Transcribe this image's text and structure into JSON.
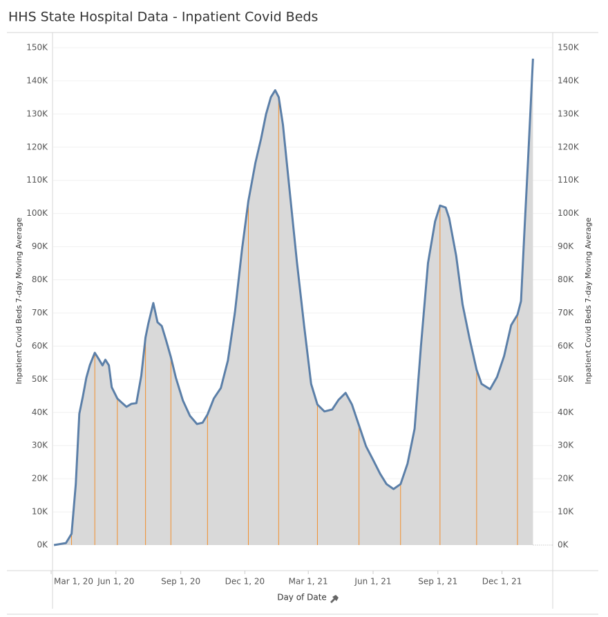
{
  "chart_data": {
    "type": "area",
    "title": "HHS State Hospital Data - Inpatient Covid Beds",
    "x_label": "Day of Date",
    "y_label": "Inpatient Covid Beds 7-day Moving Average",
    "y2_label": "Inpatient Covid Beds 7-day Moving Average",
    "xlim": [
      "2020-03-01",
      "2022-02-11"
    ],
    "xticks": [
      {
        "value": "2020-03-01",
        "label": "Mar 1, 20"
      },
      {
        "value": "2020-06-01",
        "label": "Jun 1, 20"
      },
      {
        "value": "2020-09-01",
        "label": "Sep 1, 20"
      },
      {
        "value": "2020-12-01",
        "label": "Dec 1, 20"
      },
      {
        "value": "2021-03-01",
        "label": "Mar 1, 21"
      },
      {
        "value": "2021-06-01",
        "label": "Jun 1, 21"
      },
      {
        "value": "2021-09-01",
        "label": "Sep 1, 21"
      },
      {
        "value": "2021-12-01",
        "label": "Dec 1, 21"
      }
    ],
    "ylim": [
      0,
      150000
    ],
    "yticks": [
      {
        "value": 0,
        "label": "0K"
      },
      {
        "value": 10000,
        "label": "10K"
      },
      {
        "value": 20000,
        "label": "20K"
      },
      {
        "value": 30000,
        "label": "30K"
      },
      {
        "value": 40000,
        "label": "40K"
      },
      {
        "value": 50000,
        "label": "50K"
      },
      {
        "value": 60000,
        "label": "60K"
      },
      {
        "value": 70000,
        "label": "70K"
      },
      {
        "value": 80000,
        "label": "80K"
      },
      {
        "value": 90000,
        "label": "90K"
      },
      {
        "value": 100000,
        "label": "100K"
      },
      {
        "value": 110000,
        "label": "110K"
      },
      {
        "value": 120000,
        "label": "120K"
      },
      {
        "value": 130000,
        "label": "130K"
      },
      {
        "value": 140000,
        "label": "140K"
      },
      {
        "value": 150000,
        "label": "150K"
      }
    ],
    "grid": true,
    "line_color": "#5b7fa8",
    "fill_color": "#d9d9d9",
    "drop_line_color": "#f28e2b",
    "x": [
      "2020-03-05",
      "2020-03-22",
      "2020-03-30",
      "2020-04-05",
      "2020-04-10",
      "2020-04-15",
      "2020-04-20",
      "2020-04-25",
      "2020-05-02",
      "2020-05-07",
      "2020-05-13",
      "2020-05-17",
      "2020-05-22",
      "2020-05-26",
      "2020-06-03",
      "2020-06-10",
      "2020-06-16",
      "2020-06-23",
      "2020-06-30",
      "2020-07-07",
      "2020-07-13",
      "2020-07-17",
      "2020-07-24",
      "2020-07-30",
      "2020-08-05",
      "2020-08-11",
      "2020-08-18",
      "2020-08-25",
      "2020-09-04",
      "2020-09-14",
      "2020-09-24",
      "2020-10-02",
      "2020-10-09",
      "2020-10-18",
      "2020-10-28",
      "2020-11-07",
      "2020-11-17",
      "2020-11-27",
      "2020-12-06",
      "2020-12-16",
      "2020-12-24",
      "2020-12-31",
      "2021-01-07",
      "2021-01-13",
      "2021-01-18",
      "2021-01-24",
      "2021-02-03",
      "2021-02-13",
      "2021-02-23",
      "2021-03-05",
      "2021-03-14",
      "2021-03-24",
      "2021-04-04",
      "2021-04-13",
      "2021-04-23",
      "2021-05-02",
      "2021-05-12",
      "2021-05-22",
      "2021-06-01",
      "2021-06-11",
      "2021-06-20",
      "2021-06-30",
      "2021-07-10",
      "2021-07-20",
      "2021-07-30",
      "2021-08-08",
      "2021-08-18",
      "2021-08-28",
      "2021-09-04",
      "2021-09-12",
      "2021-09-17",
      "2021-09-27",
      "2021-10-06",
      "2021-10-16",
      "2021-10-26",
      "2021-11-02",
      "2021-11-14",
      "2021-11-24",
      "2021-12-04",
      "2021-12-14",
      "2021-12-23",
      "2021-12-28",
      "2022-01-02",
      "2022-01-07",
      "2022-01-14"
    ],
    "values": [
      0,
      600,
      3400,
      18400,
      39600,
      44800,
      50500,
      54300,
      58000,
      56300,
      54200,
      55900,
      54200,
      47600,
      44200,
      42800,
      41700,
      42600,
      42800,
      51100,
      62600,
      66800,
      73000,
      67200,
      66100,
      61900,
      56700,
      50500,
      43600,
      39000,
      36500,
      36900,
      39400,
      44200,
      47400,
      55700,
      70300,
      89200,
      103800,
      115300,
      122600,
      129900,
      135100,
      137200,
      135100,
      126800,
      105900,
      85100,
      66300,
      48600,
      42400,
      40300,
      40900,
      43800,
      45900,
      42400,
      36100,
      29800,
      25700,
      21500,
      18400,
      16900,
      18400,
      24600,
      35100,
      60100,
      85100,
      97600,
      102400,
      101800,
      98600,
      87200,
      72600,
      62200,
      52800,
      48600,
      47000,
      50700,
      57000,
      66300,
      69500,
      73600,
      95300,
      116200,
      146700
    ]
  }
}
